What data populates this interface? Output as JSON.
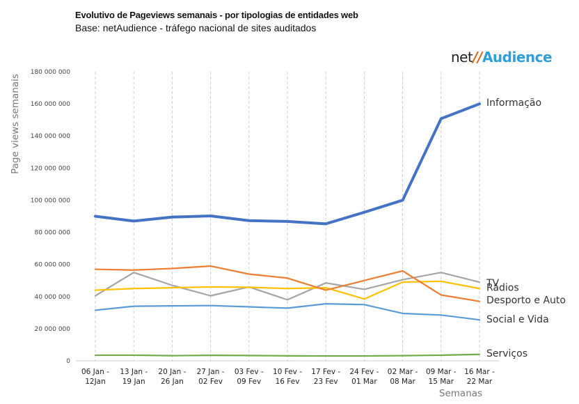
{
  "header": {
    "title": "Evolutivo de Pageviews semanais - por tipologias de entidades web",
    "subtitle": "Base: netAudience - tráfego nacional de sites auditados"
  },
  "logo": {
    "net": "net",
    "slash": "//",
    "audience": "Audience"
  },
  "chart_data": {
    "type": "line",
    "title": "Evolutivo de Pageviews semanais - por tipologias de entidades web",
    "ylabel": "Page views semanais",
    "xlabel": "Semanas",
    "ylim": [
      0,
      180000000
    ],
    "yticks": [
      0,
      20000000,
      40000000,
      60000000,
      80000000,
      100000000,
      120000000,
      140000000,
      160000000,
      180000000
    ],
    "ytick_labels": [
      "0",
      "20 000 000",
      "40 000 000",
      "60 000 000",
      "80 000 000",
      "100 000 000",
      "120 000 000",
      "140 000 000",
      "160 000 000",
      "180 000 000"
    ],
    "categories": [
      [
        "06 Jan -",
        "12Jan"
      ],
      [
        "13 Jan -",
        "19 Jan"
      ],
      [
        "20 Jan -",
        "26 Jan"
      ],
      [
        "27 Jan -",
        "02 Fev"
      ],
      [
        "03 Fev -",
        "09 Fev"
      ],
      [
        "10 Fev -",
        "16 Fev"
      ],
      [
        "17 Fev -",
        "23 Fev"
      ],
      [
        "24 Fev -",
        "01 Mar"
      ],
      [
        "02 Mar -",
        "08 Mar"
      ],
      [
        "09 Mar -",
        "15 Mar"
      ],
      [
        "16 Mar -",
        "22 Mar"
      ]
    ],
    "grid": "vertical-dashed",
    "series": [
      {
        "name": "Informação",
        "color": "#4472c4",
        "width": 4,
        "values": [
          90000000,
          87000000,
          89500000,
          90200000,
          87300000,
          86800000,
          85300000,
          92500000,
          100000000,
          150800000,
          160000000
        ]
      },
      {
        "name": "TV",
        "color": "#a5a5a5",
        "width": 2.2,
        "values": [
          40500000,
          55000000,
          47000000,
          40500000,
          46000000,
          38000000,
          48500000,
          44500000,
          50500000,
          55000000,
          49000000
        ]
      },
      {
        "name": "Rádios",
        "color": "#ffc000",
        "width": 2.2,
        "values": [
          44000000,
          45000000,
          45500000,
          46000000,
          45800000,
          45000000,
          45500000,
          38500000,
          49000000,
          49500000,
          45000000
        ]
      },
      {
        "name": "Desporto e Auto",
        "color": "#ed7d31",
        "width": 2.2,
        "values": [
          57000000,
          56500000,
          57500000,
          59000000,
          54000000,
          51500000,
          44000000,
          50000000,
          56000000,
          41000000,
          37000000
        ]
      },
      {
        "name": "Social e Vida",
        "color": "#5b9bd5",
        "width": 2.2,
        "values": [
          31500000,
          34000000,
          34200000,
          34400000,
          33600000,
          32800000,
          35500000,
          35000000,
          29500000,
          28500000,
          25500000
        ]
      },
      {
        "name": "Serviços",
        "color": "#70ad47",
        "width": 2.2,
        "values": [
          3500000,
          3500000,
          3200000,
          3400000,
          3300000,
          3100000,
          3000000,
          3000000,
          3200000,
          3500000,
          4000000
        ]
      }
    ]
  }
}
